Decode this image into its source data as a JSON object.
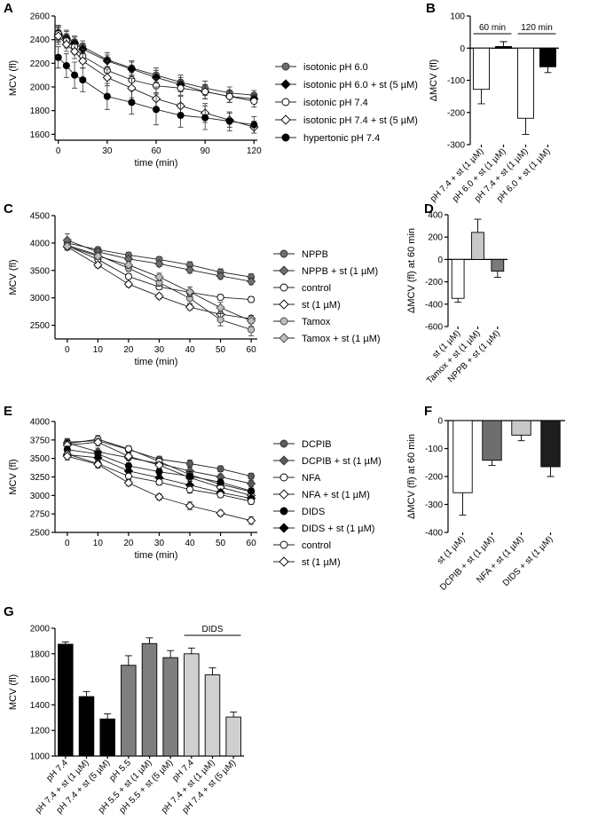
{
  "chart_data": [
    {
      "panel": "A",
      "type": "line",
      "xlabel": "time (min)",
      "ylabel": "MCV (fl)",
      "xlim": [
        -2,
        122
      ],
      "ylim": [
        1550,
        2600
      ],
      "xticks": [
        0,
        30,
        60,
        90,
        120
      ],
      "yticks": [
        1600,
        1800,
        2000,
        2200,
        2400,
        2600
      ],
      "x": [
        0,
        5,
        10,
        15,
        30,
        45,
        60,
        75,
        90,
        105,
        120
      ],
      "series": [
        {
          "name": "isotonic pH 6.0",
          "marker": "circle-gray",
          "values": [
            2460,
            2420,
            2380,
            2340,
            2230,
            2160,
            2100,
            2040,
            1990,
            1950,
            1930
          ],
          "errors": [
            60,
            60,
            50,
            50,
            60,
            60,
            60,
            60,
            60,
            50,
            40
          ]
        },
        {
          "name": "isotonic pH 6.0 + st (5 µM)",
          "marker": "diamond-black",
          "values": [
            2450,
            2410,
            2370,
            2320,
            2220,
            2150,
            2080,
            2020,
            1960,
            1920,
            1900
          ],
          "errors": [
            60,
            60,
            50,
            50,
            50,
            60,
            60,
            60,
            60,
            50,
            40
          ]
        },
        {
          "name": "isotonic pH 7.4",
          "marker": "circle-white",
          "values": [
            2450,
            2390,
            2340,
            2260,
            2140,
            2060,
            2010,
            1990,
            1960,
            1920,
            1880
          ],
          "errors": [
            70,
            60,
            60,
            60,
            80,
            60,
            60,
            60,
            60,
            50,
            50
          ]
        },
        {
          "name": "isotonic pH 7.4 + st (5 µM)",
          "marker": "diamond-white",
          "values": [
            2430,
            2360,
            2300,
            2220,
            2080,
            1990,
            1900,
            1840,
            1780,
            1720,
            1660
          ],
          "errors": [
            70,
            60,
            60,
            60,
            70,
            80,
            100,
            80,
            80,
            60,
            50
          ]
        },
        {
          "name": "hypertonic pH 7.4",
          "marker": "circle-black",
          "values": [
            2250,
            2180,
            2100,
            2060,
            1920,
            1870,
            1810,
            1760,
            1740,
            1710,
            1680
          ],
          "errors": [
            90,
            100,
            110,
            100,
            110,
            100,
            130,
            100,
            100,
            80,
            70
          ]
        }
      ]
    },
    {
      "panel": "B",
      "type": "bar",
      "ylabel": "ΔMCV (fl)",
      "ylim": [
        -300,
        100
      ],
      "yticks": [
        -300,
        -200,
        -100,
        0,
        100
      ],
      "categories": [
        "pH 7.4 + st (1 µM)",
        "pH 6.0 + st (1 µM)",
        "pH 7.4 + st (1 µM)",
        "pH 6.0 + st (1 µM)"
      ],
      "values": [
        -128,
        5,
        -218,
        -58
      ],
      "errors": [
        45,
        15,
        50,
        18
      ],
      "fills": [
        "#ffffff",
        "#000000",
        "#ffffff",
        "#000000"
      ],
      "annotations": [
        {
          "text": "60 min",
          "from": 0,
          "to": 1
        },
        {
          "text": "120 min",
          "from": 2,
          "to": 3
        }
      ]
    },
    {
      "panel": "C",
      "type": "line",
      "xlabel": "time (min)",
      "ylabel": "MCV (fl)",
      "xlim": [
        -4,
        62
      ],
      "ylim": [
        2250,
        4500
      ],
      "xticks": [
        0,
        10,
        20,
        30,
        40,
        50,
        60
      ],
      "yticks": [
        2500,
        3000,
        3500,
        4000,
        4500
      ],
      "x": [
        0,
        10,
        20,
        30,
        40,
        50,
        60
      ],
      "series": [
        {
          "name": "NPPB",
          "marker": "circle-gray",
          "values": [
            4000,
            3880,
            3780,
            3700,
            3600,
            3470,
            3380
          ],
          "errors": [
            70,
            50,
            50,
            50,
            60,
            60,
            60
          ]
        },
        {
          "name": "NPPB + st (1 µM)",
          "marker": "diamond-gray",
          "values": [
            4050,
            3840,
            3710,
            3620,
            3510,
            3400,
            3300
          ],
          "errors": [
            120,
            50,
            50,
            50,
            60,
            60,
            60
          ]
        },
        {
          "name": "control",
          "marker": "circle-white",
          "values": [
            3950,
            3700,
            3390,
            3200,
            3100,
            3010,
            2970
          ],
          "errors": [
            60,
            50,
            50,
            50,
            50,
            50,
            50
          ]
        },
        {
          "name": "st (1 µM)",
          "marker": "diamond-white",
          "values": [
            3930,
            3600,
            3250,
            3030,
            2830,
            2700,
            2620
          ],
          "errors": [
            60,
            50,
            50,
            50,
            50,
            60,
            60
          ]
        },
        {
          "name": "Tamox",
          "marker": "circle-lightgray",
          "values": [
            3960,
            3780,
            3540,
            3280,
            2990,
            2600,
            2420
          ],
          "errors": [
            60,
            60,
            60,
            70,
            90,
            110,
            110
          ]
        },
        {
          "name": "Tamox + st (1 µM)",
          "marker": "diamond-lightgray",
          "values": [
            3940,
            3760,
            3600,
            3380,
            3110,
            2820,
            2580
          ],
          "errors": [
            60,
            60,
            60,
            70,
            90,
            100,
            100
          ]
        }
      ]
    },
    {
      "panel": "D",
      "type": "bar",
      "ylabel": "ΔMCV (fl) at 60 min",
      "ylim": [
        -600,
        400
      ],
      "yticks": [
        -600,
        -400,
        -200,
        0,
        200,
        400
      ],
      "categories": [
        "st (1 µM)",
        "Tamox + st (1 µM)",
        "NPPB + st (1 µM)"
      ],
      "values": [
        -348,
        242,
        -105
      ],
      "errors": [
        35,
        118,
        55
      ],
      "fills": [
        "#ffffff",
        "#c8c8c8",
        "#7a7a7a"
      ]
    },
    {
      "panel": "E",
      "type": "line",
      "xlabel": "time (min)",
      "ylabel": "MCV (fl)",
      "xlim": [
        -4,
        62
      ],
      "ylim": [
        2500,
        4000
      ],
      "xticks": [
        0,
        10,
        20,
        30,
        40,
        50,
        60
      ],
      "yticks": [
        2500,
        2750,
        3000,
        3250,
        3500,
        3750,
        4000
      ],
      "x": [
        0,
        10,
        20,
        30,
        40,
        50,
        60
      ],
      "series": [
        {
          "name": "DCPIB",
          "marker": "circle-darkgray",
          "values": [
            3720,
            3740,
            3620,
            3490,
            3430,
            3360,
            3260
          ],
          "errors": [
            50,
            50,
            40,
            40,
            50,
            40,
            40
          ]
        },
        {
          "name": "DCPIB + st (1 µM)",
          "marker": "diamond-darkgray",
          "values": [
            3710,
            3590,
            3510,
            3430,
            3330,
            3250,
            3160
          ],
          "errors": [
            50,
            50,
            40,
            40,
            50,
            40,
            40
          ]
        },
        {
          "name": "NFA",
          "marker": "circle-white",
          "values": [
            3700,
            3760,
            3630,
            3460,
            3280,
            3150,
            3050
          ],
          "errors": [
            50,
            50,
            40,
            40,
            50,
            40,
            40
          ]
        },
        {
          "name": "NFA + st (1 µM)",
          "marker": "diamond-white",
          "values": [
            3680,
            3720,
            3530,
            3410,
            3240,
            3110,
            3000
          ],
          "errors": [
            50,
            50,
            40,
            40,
            50,
            40,
            40
          ]
        },
        {
          "name": "DIDS",
          "marker": "circle-black",
          "values": [
            3620,
            3560,
            3400,
            3320,
            3260,
            3180,
            3060
          ],
          "errors": [
            50,
            50,
            40,
            40,
            50,
            40,
            40
          ]
        },
        {
          "name": "DIDS + st (1 µM)",
          "marker": "diamond-black",
          "values": [
            3550,
            3510,
            3330,
            3240,
            3140,
            3040,
            2960
          ],
          "errors": [
            50,
            50,
            40,
            40,
            50,
            40,
            40
          ]
        },
        {
          "name": "control",
          "marker": "circle-white",
          "values": [
            3560,
            3430,
            3260,
            3180,
            3080,
            3010,
            2920
          ],
          "errors": [
            50,
            50,
            40,
            40,
            50,
            40,
            40
          ]
        },
        {
          "name": "st (1 µM)",
          "marker": "diamond-white",
          "values": [
            3530,
            3420,
            3170,
            2980,
            2860,
            2760,
            2660
          ],
          "errors": [
            50,
            50,
            40,
            40,
            50,
            40,
            50
          ]
        }
      ]
    },
    {
      "panel": "F",
      "type": "bar",
      "ylabel": "ΔMCV (fl) at 60 min",
      "ylim": [
        -400,
        0
      ],
      "yticks": [
        -400,
        -300,
        -200,
        -100,
        0
      ],
      "categories": [
        "st (1 µM)",
        "DCPIB + st (1 µM)",
        "NFA + st (1 µM)",
        "DIDS + st (1 µM)"
      ],
      "values": [
        -258,
        -142,
        -52,
        -165
      ],
      "errors": [
        80,
        18,
        20,
        35
      ],
      "fills": [
        "#ffffff",
        "#6e6e6e",
        "#c8c8c8",
        "#1e1e1e"
      ]
    },
    {
      "panel": "G",
      "type": "bar",
      "ylabel": "MCV (fl)",
      "ylim": [
        1000,
        2000
      ],
      "yticks": [
        1000,
        1200,
        1400,
        1600,
        1800,
        2000
      ],
      "categories": [
        "pH 7.4",
        "pH 7.4 + st (1 µM)",
        "pH 7.4 + st (5 µM)",
        "pH 5.5",
        "pH 5.5 + st (1 µM)",
        "pH 5.5 + st (5 µM)",
        "pH 7.4",
        "pH 7.4 + st (1 µM)",
        "pH 7.4 + st (5 µM)"
      ],
      "values": [
        1875,
        1465,
        1290,
        1710,
        1880,
        1770,
        1800,
        1635,
        1305
      ],
      "errors": [
        18,
        40,
        40,
        75,
        45,
        55,
        45,
        55,
        40
      ],
      "fills": [
        "#000000",
        "#000000",
        "#000000",
        "#7f7f7f",
        "#7f7f7f",
        "#7f7f7f",
        "#d0d0d0",
        "#d0d0d0",
        "#d0d0d0"
      ],
      "annotations": [
        {
          "text": "DIDS",
          "from": 6,
          "to": 8
        }
      ]
    }
  ]
}
